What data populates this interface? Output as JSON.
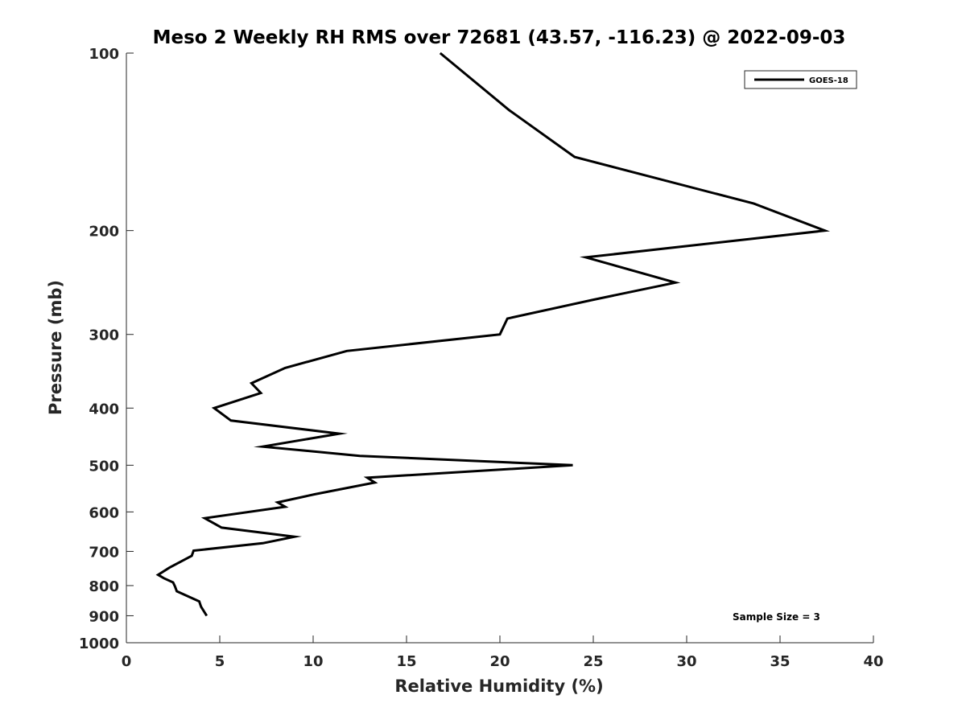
{
  "chart_data": {
    "type": "line",
    "title": "Meso 2 Weekly RH RMS over 72681 (43.57, -116.23) @ 2022-09-03",
    "xlabel": "Relative Humidity (%)",
    "ylabel": "Pressure (mb)",
    "xlim": [
      0,
      40
    ],
    "ylim": [
      100,
      1000
    ],
    "y_scale": "log",
    "y_reversed": true,
    "xticks": [
      0,
      5,
      10,
      15,
      20,
      25,
      30,
      35,
      40
    ],
    "xtick_labels": [
      "0",
      "5",
      "10",
      "15",
      "20",
      "25",
      "30",
      "35",
      "40"
    ],
    "yticks": [
      100,
      200,
      300,
      400,
      500,
      600,
      700,
      800,
      900,
      1000
    ],
    "ytick_labels": [
      "100",
      "200",
      "300",
      "400",
      "500",
      "600",
      "700",
      "800",
      "900",
      "1000"
    ],
    "grid": false,
    "legend_position": "top-right",
    "line_color": "#000000",
    "annotation": "Sample Size = 3",
    "series": [
      {
        "name": "GOES-18",
        "x": [
          16.8,
          20.5,
          24.0,
          33.6,
          37.4,
          24.6,
          29.4,
          25.0,
          20.4,
          20.0,
          11.8,
          8.5,
          6.7,
          7.2,
          4.7,
          5.6,
          11.4,
          7.3,
          12.5,
          23.9,
          12.9,
          13.3,
          10.1,
          8.1,
          8.5,
          4.2,
          5.1,
          9.0,
          7.3,
          3.6,
          3.5,
          2.3,
          1.7,
          2.0,
          2.5,
          2.6,
          2.7,
          3.9,
          4.0,
          4.3
        ],
        "y": [
          100,
          125,
          150,
          180,
          200,
          222,
          245,
          262,
          282,
          300,
          320,
          342,
          363,
          377,
          400,
          420,
          442,
          465,
          482,
          500,
          525,
          535,
          560,
          578,
          588,
          615,
          638,
          661,
          678,
          698,
          712,
          746,
          767,
          777,
          790,
          802,
          818,
          851,
          869,
          900
        ]
      }
    ]
  }
}
